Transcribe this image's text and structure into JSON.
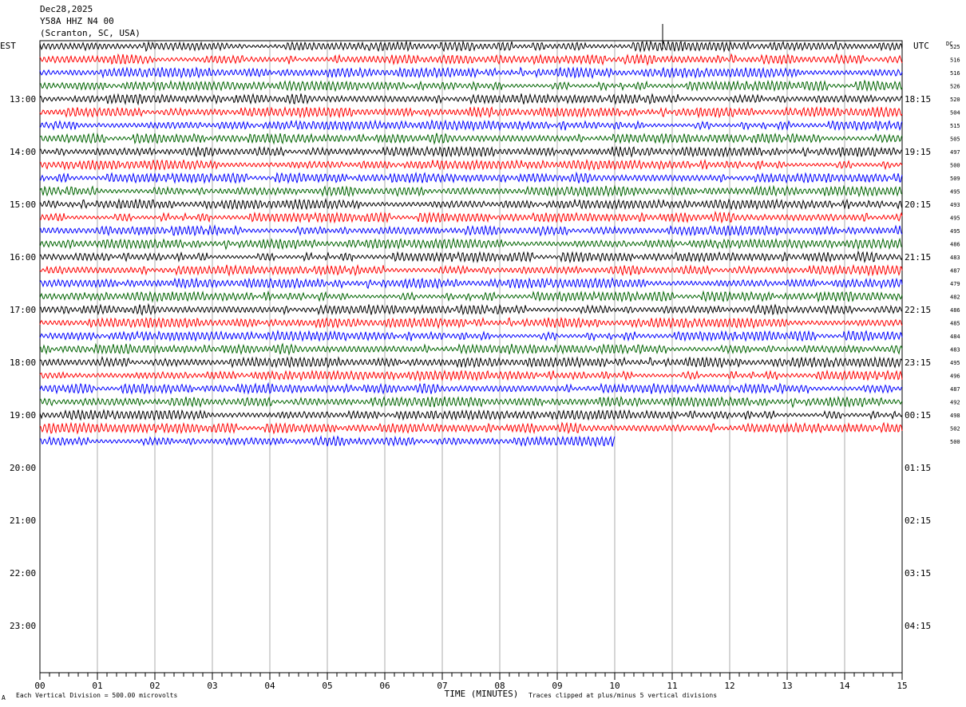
{
  "header": {
    "date": "Dec28,2025",
    "station": "Y58A HHZ N4 00",
    "location": "(Scranton, SC, USA)"
  },
  "footer": {
    "scale_note": "Each Vertical Division =  500.00 microvolts",
    "clip_note": "Traces clipped at plus/minus 5 vertical divisions",
    "mark": "A"
  },
  "chart_data": {
    "type": "line",
    "title": "Y58A HHZ N4 00",
    "xlabel": "TIME (MINUTES)",
    "xlim": [
      0,
      15
    ],
    "x_ticks": [
      "00",
      "01",
      "02",
      "03",
      "04",
      "05",
      "06",
      "07",
      "08",
      "09",
      "10",
      "11",
      "12",
      "13",
      "14",
      "15"
    ],
    "left_axis_title": "EST",
    "right_axis_title": "UTC",
    "dc_header": "DC",
    "est_labels": [
      "13:00",
      "14:00",
      "15:00",
      "16:00",
      "17:00",
      "18:00",
      "19:00",
      "20:00",
      "21:00",
      "22:00",
      "23:00"
    ],
    "utc_labels": [
      "18:15",
      "19:15",
      "20:15",
      "21:15",
      "22:15",
      "23:15",
      "00:15",
      "01:15",
      "02:15",
      "03:15",
      "04:15"
    ],
    "rows_per_hour": 4,
    "total_rows": 48,
    "trace_colors": [
      "#000000",
      "#ff0000",
      "#0000ff",
      "#006400"
    ],
    "grid": "vertical lines every minute",
    "traces": [
      {
        "row": 0,
        "dc": "525",
        "end_min": 15
      },
      {
        "row": 1,
        "dc": "516",
        "end_min": 15
      },
      {
        "row": 2,
        "dc": "516",
        "end_min": 15
      },
      {
        "row": 3,
        "dc": "526",
        "end_min": 15
      },
      {
        "row": 4,
        "dc": "520",
        "end_min": 15
      },
      {
        "row": 5,
        "dc": "504",
        "end_min": 15
      },
      {
        "row": 6,
        "dc": "515",
        "end_min": 15
      },
      {
        "row": 7,
        "dc": "505",
        "end_min": 15
      },
      {
        "row": 8,
        "dc": "497",
        "end_min": 15
      },
      {
        "row": 9,
        "dc": "500",
        "end_min": 15
      },
      {
        "row": 10,
        "dc": "509",
        "end_min": 15
      },
      {
        "row": 11,
        "dc": "495",
        "end_min": 15
      },
      {
        "row": 12,
        "dc": "493",
        "end_min": 15
      },
      {
        "row": 13,
        "dc": "495",
        "end_min": 15
      },
      {
        "row": 14,
        "dc": "495",
        "end_min": 15
      },
      {
        "row": 15,
        "dc": "486",
        "end_min": 15
      },
      {
        "row": 16,
        "dc": "483",
        "end_min": 15
      },
      {
        "row": 17,
        "dc": "487",
        "end_min": 15
      },
      {
        "row": 18,
        "dc": "479",
        "end_min": 15
      },
      {
        "row": 19,
        "dc": "482",
        "end_min": 15
      },
      {
        "row": 20,
        "dc": "486",
        "end_min": 15
      },
      {
        "row": 21,
        "dc": "485",
        "end_min": 15
      },
      {
        "row": 22,
        "dc": "484",
        "end_min": 15
      },
      {
        "row": 23,
        "dc": "483",
        "end_min": 15
      },
      {
        "row": 24,
        "dc": "495",
        "end_min": 15
      },
      {
        "row": 25,
        "dc": "496",
        "end_min": 15
      },
      {
        "row": 26,
        "dc": "487",
        "end_min": 15
      },
      {
        "row": 27,
        "dc": "492",
        "end_min": 15
      },
      {
        "row": 28,
        "dc": "498",
        "end_min": 15
      },
      {
        "row": 29,
        "dc": "502",
        "end_min": 15
      },
      {
        "row": 30,
        "dc": "500",
        "end_min": 10
      }
    ]
  }
}
